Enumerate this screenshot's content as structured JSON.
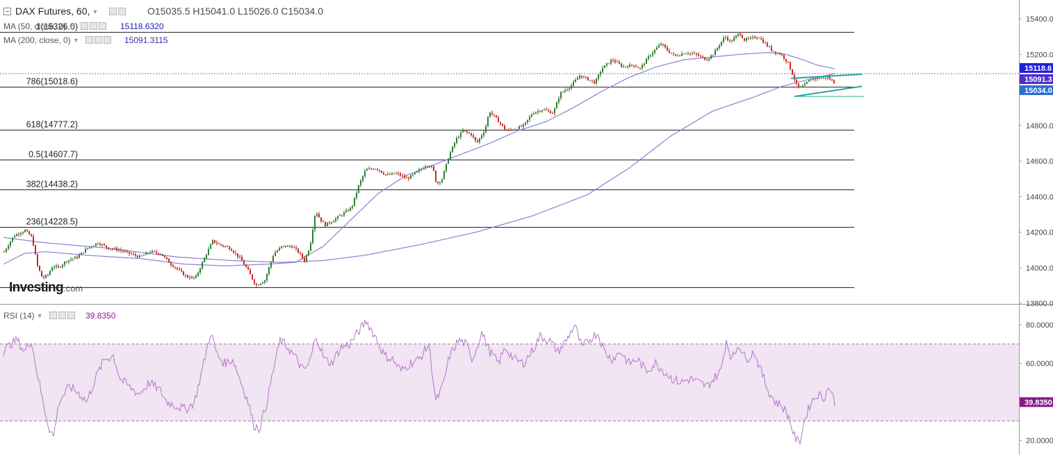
{
  "header": {
    "title": "DAX Futures, 60,",
    "ohlc": "O15035.5   H15041.0   L15026.0   C15034.0"
  },
  "indicators": {
    "ma50": {
      "label": "MA (50, close, 0)",
      "value": "15118.6320",
      "color": "#1a1ab0"
    },
    "ma200": {
      "label": "MA (200, close, 0)",
      "value": "15091.3115",
      "color": "#3a2ab0"
    },
    "rsi": {
      "label": "RSI (14)",
      "value": "39.8350",
      "color": "#8a1a8a"
    }
  },
  "watermark": {
    "brand": "Investing",
    "suffix": ".com"
  },
  "colors": {
    "up": "#2e7d32",
    "down": "#c62828",
    "ma": "#8a7fd6",
    "channel": "#26a69a",
    "rsi_line": "#b574c8",
    "rsi_band": "#f1e4f3"
  },
  "chart_data": [
    {
      "type": "candlestick",
      "title": "DAX Futures, 60",
      "ylim": [
        13800,
        15480
      ],
      "y_ticks": [
        "13800.0",
        "14000.0",
        "14200.0",
        "14400.0",
        "14600.0",
        "14800.0",
        "15000.0",
        "15200.0",
        "15400.0"
      ],
      "ohlc_last": {
        "open": 15035.5,
        "high": 15041.0,
        "low": 15026.0,
        "close": 15034.0
      },
      "fib_levels": [
        {
          "label": "1(15326.0)",
          "value": 15326.0
        },
        {
          "label": "786(15018.6)",
          "value": 15018.6
        },
        {
          "label": "618(14777.2)",
          "value": 14777.2
        },
        {
          "label": "0.5(14607.7)",
          "value": 14607.7
        },
        {
          "label": "382(14438.2)",
          "value": 14438.2
        },
        {
          "label": "236(14228.5)",
          "value": 14228.5
        },
        {
          "label": "",
          "value": 13890.0
        }
      ],
      "price_anchors": [
        [
          0,
          14090
        ],
        [
          14,
          14180
        ],
        [
          30,
          14210
        ],
        [
          40,
          14170
        ],
        [
          48,
          14010
        ],
        [
          55,
          13940
        ],
        [
          63,
          13960
        ],
        [
          70,
          14010
        ],
        [
          78,
          14000
        ],
        [
          90,
          14040
        ],
        [
          105,
          14060
        ],
        [
          120,
          14110
        ],
        [
          135,
          14140
        ],
        [
          150,
          14110
        ],
        [
          165,
          14100
        ],
        [
          180,
          14080
        ],
        [
          195,
          14060
        ],
        [
          210,
          14090
        ],
        [
          225,
          14080
        ],
        [
          240,
          14020
        ],
        [
          250,
          13990
        ],
        [
          262,
          13950
        ],
        [
          275,
          13940
        ],
        [
          290,
          14070
        ],
        [
          300,
          14150
        ],
        [
          310,
          14130
        ],
        [
          325,
          14110
        ],
        [
          340,
          14050
        ],
        [
          350,
          13990
        ],
        [
          362,
          13900
        ],
        [
          375,
          13930
        ],
        [
          388,
          14080
        ],
        [
          400,
          14120
        ],
        [
          415,
          14120
        ],
        [
          425,
          14080
        ],
        [
          432,
          14040
        ],
        [
          440,
          14120
        ],
        [
          448,
          14320
        ],
        [
          455,
          14270
        ],
        [
          462,
          14240
        ],
        [
          475,
          14270
        ],
        [
          490,
          14310
        ],
        [
          500,
          14340
        ],
        [
          510,
          14460
        ],
        [
          520,
          14550
        ],
        [
          535,
          14560
        ],
        [
          550,
          14520
        ],
        [
          565,
          14530
        ],
        [
          580,
          14500
        ],
        [
          595,
          14540
        ],
        [
          608,
          14580
        ],
        [
          617,
          14560
        ],
        [
          622,
          14470
        ],
        [
          630,
          14500
        ],
        [
          640,
          14630
        ],
        [
          650,
          14720
        ],
        [
          660,
          14770
        ],
        [
          672,
          14750
        ],
        [
          680,
          14700
        ],
        [
          692,
          14780
        ],
        [
          698,
          14880
        ],
        [
          710,
          14830
        ],
        [
          722,
          14770
        ],
        [
          735,
          14780
        ],
        [
          748,
          14800
        ],
        [
          760,
          14870
        ],
        [
          775,
          14890
        ],
        [
          790,
          14870
        ],
        [
          800,
          14980
        ],
        [
          815,
          15020
        ],
        [
          828,
          15080
        ],
        [
          840,
          15060
        ],
        [
          850,
          15040
        ],
        [
          860,
          15120
        ],
        [
          875,
          15170
        ],
        [
          890,
          15130
        ],
        [
          905,
          15140
        ],
        [
          915,
          15120
        ],
        [
          930,
          15200
        ],
        [
          945,
          15260
        ],
        [
          955,
          15220
        ],
        [
          965,
          15190
        ],
        [
          980,
          15210
        ],
        [
          995,
          15200
        ],
        [
          1010,
          15170
        ],
        [
          1020,
          15200
        ],
        [
          1030,
          15260
        ],
        [
          1037,
          15300
        ],
        [
          1045,
          15270
        ],
        [
          1058,
          15320
        ],
        [
          1065,
          15280
        ],
        [
          1075,
          15290
        ],
        [
          1085,
          15300
        ],
        [
          1095,
          15260
        ],
        [
          1105,
          15220
        ],
        [
          1118,
          15200
        ],
        [
          1128,
          15150
        ],
        [
          1135,
          15080
        ],
        [
          1142,
          15010
        ],
        [
          1150,
          15020
        ],
        [
          1160,
          15060
        ],
        [
          1172,
          15065
        ],
        [
          1185,
          15070
        ],
        [
          1196,
          15034
        ]
      ],
      "ma50_points": [
        [
          0,
          14020
        ],
        [
          30,
          14080
        ],
        [
          60,
          14090
        ],
        [
          120,
          14070
        ],
        [
          200,
          14050
        ],
        [
          260,
          14020
        ],
        [
          320,
          14010
        ],
        [
          380,
          14020
        ],
        [
          420,
          14030
        ],
        [
          460,
          14120
        ],
        [
          500,
          14270
        ],
        [
          540,
          14420
        ],
        [
          580,
          14520
        ],
        [
          620,
          14580
        ],
        [
          660,
          14640
        ],
        [
          700,
          14700
        ],
        [
          740,
          14770
        ],
        [
          780,
          14820
        ],
        [
          820,
          14900
        ],
        [
          860,
          14990
        ],
        [
          900,
          15070
        ],
        [
          940,
          15130
        ],
        [
          980,
          15170
        ],
        [
          1020,
          15185
        ],
        [
          1060,
          15200
        ],
        [
          1100,
          15210
        ],
        [
          1125,
          15200
        ],
        [
          1150,
          15170
        ],
        [
          1170,
          15140
        ],
        [
          1196,
          15118.6
        ]
      ],
      "ma200_points": [
        [
          0,
          14170
        ],
        [
          60,
          14140
        ],
        [
          150,
          14110
        ],
        [
          250,
          14060
        ],
        [
          330,
          14040
        ],
        [
          400,
          14030
        ],
        [
          460,
          14040
        ],
        [
          520,
          14070
        ],
        [
          600,
          14130
        ],
        [
          680,
          14200
        ],
        [
          760,
          14290
        ],
        [
          840,
          14410
        ],
        [
          900,
          14560
        ],
        [
          960,
          14740
        ],
        [
          1020,
          14880
        ],
        [
          1080,
          14960
        ],
        [
          1120,
          15020
        ],
        [
          1160,
          15060
        ],
        [
          1196,
          15091.3
        ]
      ],
      "channel_lines": [
        {
          "from": [
            1138,
            15065
          ],
          "to": [
            1240,
            15088
          ]
        },
        {
          "from": [
            1143,
            14963
          ],
          "to": [
            1240,
            15020
          ]
        },
        {
          "from": [
            1143,
            14963
          ],
          "to": [
            1243,
            14963
          ]
        }
      ],
      "price_labels": [
        {
          "text": "15118.6",
          "value": 15118.6,
          "color": "#1e1ee0"
        },
        {
          "text": "15091.3",
          "value": 15091.3,
          "color": "#4e2ec9"
        },
        {
          "text": "15034.0",
          "value": 15034.0,
          "color": "#2d6fd1"
        }
      ]
    },
    {
      "type": "line",
      "title": "RSI (14)",
      "ylim": [
        15,
        85
      ],
      "y_ticks": [
        "20.0000",
        "40.0000",
        "60.0000",
        "80.0000"
      ],
      "band": [
        30,
        70
      ],
      "last_value": 39.835,
      "rsi_anchors": [
        [
          0,
          66
        ],
        [
          10,
          70
        ],
        [
          20,
          72
        ],
        [
          30,
          66
        ],
        [
          40,
          72
        ],
        [
          48,
          56
        ],
        [
          58,
          38
        ],
        [
          66,
          26
        ],
        [
          72,
          22
        ],
        [
          80,
          40
        ],
        [
          95,
          48
        ],
        [
          110,
          44
        ],
        [
          120,
          40
        ],
        [
          132,
          52
        ],
        [
          145,
          62
        ],
        [
          158,
          64
        ],
        [
          168,
          52
        ],
        [
          180,
          48
        ],
        [
          195,
          44
        ],
        [
          210,
          50
        ],
        [
          225,
          46
        ],
        [
          235,
          40
        ],
        [
          248,
          38
        ],
        [
          262,
          36
        ],
        [
          275,
          40
        ],
        [
          288,
          60
        ],
        [
          298,
          76
        ],
        [
          308,
          64
        ],
        [
          318,
          60
        ],
        [
          330,
          62
        ],
        [
          342,
          50
        ],
        [
          352,
          40
        ],
        [
          360,
          28
        ],
        [
          368,
          26
        ],
        [
          378,
          38
        ],
        [
          388,
          56
        ],
        [
          398,
          72
        ],
        [
          410,
          68
        ],
        [
          422,
          62
        ],
        [
          432,
          56
        ],
        [
          440,
          60
        ],
        [
          450,
          74
        ],
        [
          462,
          62
        ],
        [
          472,
          60
        ],
        [
          485,
          68
        ],
        [
          498,
          70
        ],
        [
          510,
          76
        ],
        [
          522,
          82
        ],
        [
          535,
          74
        ],
        [
          548,
          64
        ],
        [
          560,
          62
        ],
        [
          572,
          56
        ],
        [
          585,
          60
        ],
        [
          598,
          62
        ],
        [
          612,
          70
        ],
        [
          622,
          40
        ],
        [
          632,
          48
        ],
        [
          642,
          64
        ],
        [
          655,
          72
        ],
        [
          665,
          70
        ],
        [
          675,
          62
        ],
        [
          688,
          76
        ],
        [
          700,
          66
        ],
        [
          712,
          60
        ],
        [
          722,
          68
        ],
        [
          735,
          62
        ],
        [
          748,
          60
        ],
        [
          760,
          66
        ],
        [
          772,
          74
        ],
        [
          785,
          72
        ],
        [
          798,
          66
        ],
        [
          810,
          72
        ],
        [
          822,
          80
        ],
        [
          832,
          68
        ],
        [
          842,
          72
        ],
        [
          855,
          76
        ],
        [
          865,
          66
        ],
        [
          875,
          62
        ],
        [
          888,
          66
        ],
        [
          900,
          60
        ],
        [
          912,
          62
        ],
        [
          925,
          56
        ],
        [
          938,
          60
        ],
        [
          950,
          56
        ],
        [
          962,
          52
        ],
        [
          975,
          50
        ],
        [
          988,
          52
        ],
        [
          1000,
          50
        ],
        [
          1012,
          48
        ],
        [
          1022,
          52
        ],
        [
          1032,
          56
        ],
        [
          1040,
          72
        ],
        [
          1048,
          62
        ],
        [
          1058,
          70
        ],
        [
          1068,
          62
        ],
        [
          1080,
          66
        ],
        [
          1090,
          56
        ],
        [
          1100,
          46
        ],
        [
          1110,
          40
        ],
        [
          1120,
          38
        ],
        [
          1130,
          32
        ],
        [
          1138,
          22
        ],
        [
          1145,
          18
        ],
        [
          1152,
          30
        ],
        [
          1162,
          40
        ],
        [
          1172,
          44
        ],
        [
          1180,
          42
        ],
        [
          1188,
          48
        ],
        [
          1196,
          39.835
        ]
      ]
    }
  ]
}
